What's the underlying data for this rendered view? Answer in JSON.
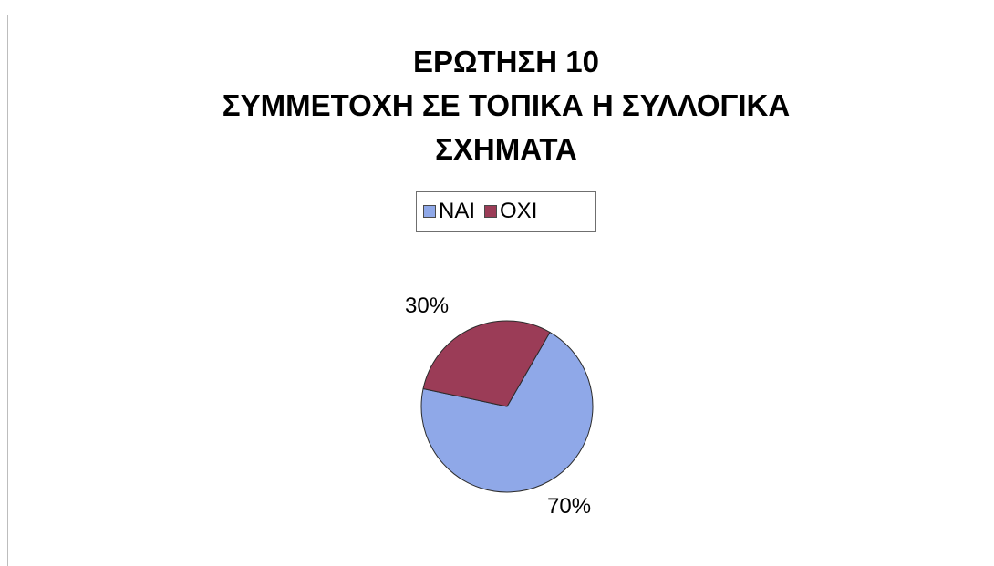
{
  "chart_data": {
    "type": "pie",
    "title": "ΕΡΩΤΗΣΗ 10",
    "subtitle_lines": [
      "ΣΥΜΜΕΤΟΧΗ ΣΕ ΤΟΠΙΚΑ Η ΣΥΛΛΟΓΙΚΑ",
      "ΣΧΗΜΑΤΑ"
    ],
    "legend_position": "top",
    "slices": [
      {
        "label": "ΝΑΙ",
        "value": 70,
        "data_label": "70%",
        "color": "#8fa8e8"
      },
      {
        "label": "ΟΧΙ",
        "value": 30,
        "data_label": "30%",
        "color": "#9b3c57"
      }
    ]
  }
}
